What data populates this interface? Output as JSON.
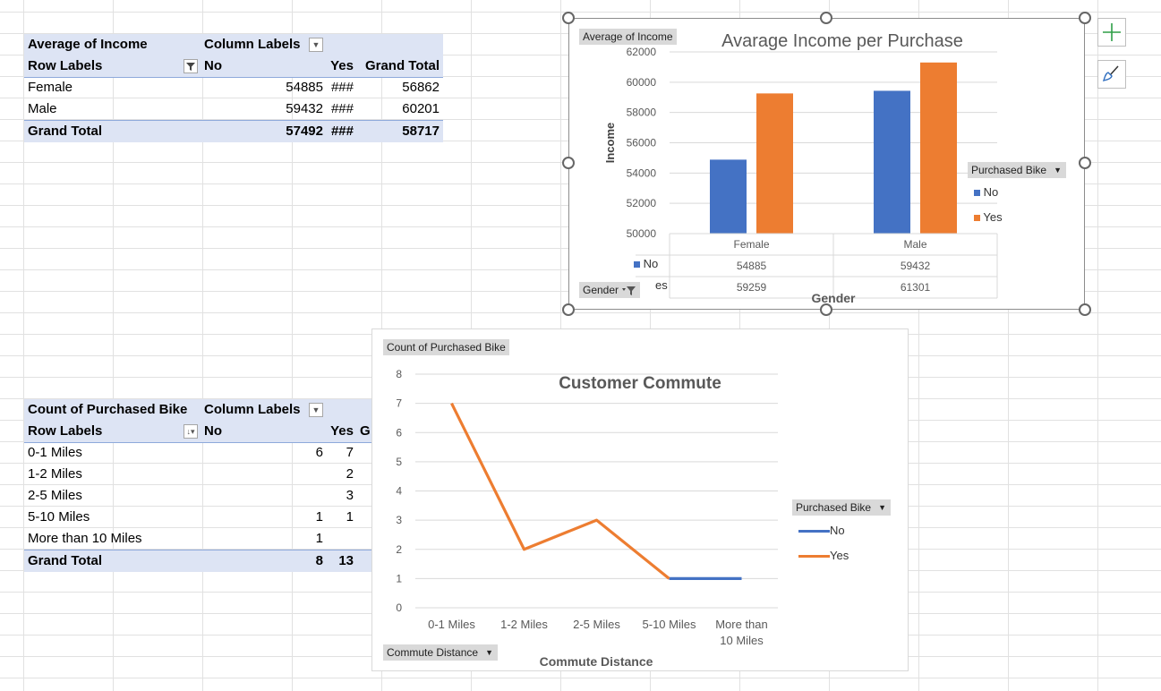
{
  "pivot_income": {
    "title": "Average of Income",
    "column_labels": "Column Labels",
    "row_labels": "Row Labels",
    "col_no": "No",
    "col_yes": "Yes",
    "col_grand": "Grand Total",
    "rows": [
      {
        "label": "Female",
        "no": "54885",
        "yes": "###",
        "grand": "56862"
      },
      {
        "label": "Male",
        "no": "59432",
        "yes": "###",
        "grand": "60201"
      }
    ],
    "total": {
      "label": "Grand Total",
      "no": "57492",
      "yes": "###",
      "grand": "58717"
    }
  },
  "pivot_commute": {
    "title": "Count of Purchased Bike",
    "column_labels": "Column Labels",
    "row_labels": "Row Labels",
    "col_no": "No",
    "col_yes": "Yes",
    "col_grand_partial": "G",
    "rows": [
      {
        "label": "0-1 Miles",
        "no": "6",
        "yes": "7"
      },
      {
        "label": "1-2 Miles",
        "no": "",
        "yes": "2"
      },
      {
        "label": "2-5 Miles",
        "no": "",
        "yes": "3"
      },
      {
        "label": "5-10 Miles",
        "no": "1",
        "yes": "1"
      },
      {
        "label": "More than 10 Miles",
        "no": "1",
        "yes": ""
      }
    ],
    "total": {
      "label": "Grand Total",
      "no": "8",
      "yes": "13"
    }
  },
  "income_chart": {
    "value_chip": "Average of Income",
    "legend_chip": "Purchased Bike",
    "axis_chip": "Gender",
    "legend_no": "No",
    "legend_yes": "Yes",
    "table_no": "No",
    "table_yes_partial": "es"
  },
  "commute_chart": {
    "value_chip": "Count of Purchased Bike",
    "legend_chip": "Purchased Bike",
    "axis_chip": "Commute Distance",
    "legend_no": "No",
    "legend_yes": "Yes"
  },
  "colors": {
    "no": "#4472c4",
    "yes": "#ed7d31",
    "header": "#dde4f4"
  },
  "icons": {
    "add": "plus-icon",
    "style": "paintbrush-icon",
    "filter": "filter-icon",
    "dropdown": "dropdown-arrow-icon"
  },
  "chart_data": [
    {
      "type": "bar",
      "title": "Avarage Income per Purchase",
      "xlabel": "Gender",
      "ylabel": "Income",
      "categories": [
        "Female",
        "Male"
      ],
      "series": [
        {
          "name": "No",
          "values": [
            54885,
            59432
          ]
        },
        {
          "name": "Yes",
          "values": [
            59259,
            61301
          ]
        }
      ],
      "ylim": [
        50000,
        62000
      ],
      "yticks": [
        "50000",
        "52000",
        "54000",
        "56000",
        "58000",
        "60000",
        "62000"
      ],
      "data_table": [
        [
          "54885",
          "59432"
        ],
        [
          "59259",
          "61301"
        ]
      ],
      "grid": true,
      "legend": "right"
    },
    {
      "type": "line",
      "title": "Customer Commute",
      "xlabel": "Commute Distance",
      "ylabel": "",
      "categories": [
        "0-1 Miles",
        "1-2 Miles",
        "2-5 Miles",
        "5-10 Miles",
        "More than 10 Miles"
      ],
      "category_lines": [
        [
          "0-1 Miles"
        ],
        [
          "1-2 Miles"
        ],
        [
          "2-5 Miles"
        ],
        [
          "5-10 Miles"
        ],
        [
          "More than",
          "10 Miles"
        ]
      ],
      "series": [
        {
          "name": "No",
          "values": [
            6,
            null,
            null,
            1,
            1
          ]
        },
        {
          "name": "Yes",
          "values": [
            7,
            2,
            3,
            1,
            null
          ]
        }
      ],
      "ylim": [
        0,
        8
      ],
      "yticks": [
        "0",
        "1",
        "2",
        "3",
        "4",
        "5",
        "6",
        "7",
        "8"
      ],
      "grid": true,
      "legend": "right"
    }
  ]
}
